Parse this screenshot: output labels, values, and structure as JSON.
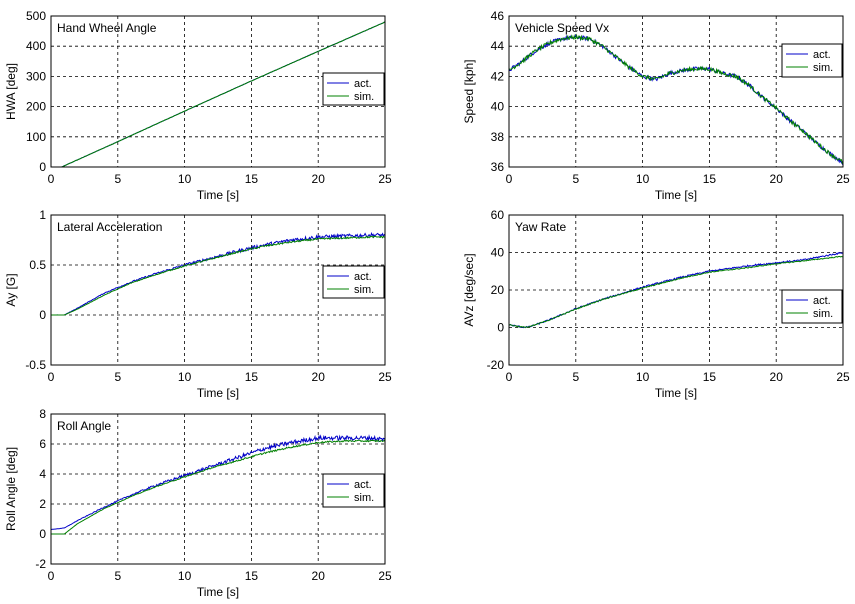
{
  "chart_data": [
    {
      "type": "line",
      "title": "Hand Wheel Angle",
      "xlabel": "Time [s]",
      "ylabel": "HWA [deg]",
      "xlim": [
        0,
        25
      ],
      "ylim": [
        0,
        500
      ],
      "xticks": [
        "0",
        "5",
        "10",
        "15",
        "20",
        "25"
      ],
      "yticks": [
        "0",
        "100",
        "200",
        "300",
        "400",
        "500"
      ],
      "grid": true,
      "legend_position": "center-right",
      "series": [
        {
          "name": "act.",
          "color": "#0000c8",
          "x": [
            0.8,
            5,
            10,
            15,
            20,
            25
          ],
          "y": [
            0,
            84,
            185,
            285,
            383,
            480
          ]
        },
        {
          "name": "sim.",
          "color": "#008000",
          "x": [
            0.8,
            5,
            10,
            15,
            20,
            25
          ],
          "y": [
            0,
            84,
            185,
            285,
            383,
            480
          ]
        }
      ]
    },
    {
      "type": "line",
      "title": "Vehicle Speed Vx",
      "xlabel": "Time [s]",
      "ylabel": "Speed [kph]",
      "xlim": [
        0,
        25
      ],
      "ylim": [
        36,
        46
      ],
      "xticks": [
        "0",
        "5",
        "10",
        "15",
        "20",
        "25"
      ],
      "yticks": [
        "36",
        "38",
        "40",
        "42",
        "44",
        "46"
      ],
      "grid": true,
      "legend_position": "top-right",
      "series": [
        {
          "name": "act.",
          "color": "#0000c8",
          "x": [
            0,
            1,
            2,
            3,
            4,
            5,
            6,
            7,
            8,
            9,
            10,
            11,
            12,
            13,
            14,
            15,
            16,
            17,
            18,
            19,
            20,
            21,
            22,
            23,
            24,
            25
          ],
          "y": [
            42.4,
            43.0,
            43.7,
            44.2,
            44.5,
            44.6,
            44.5,
            44.0,
            43.3,
            42.6,
            42.0,
            41.8,
            42.2,
            42.4,
            42.5,
            42.5,
            42.2,
            42.0,
            41.4,
            40.6,
            39.9,
            39.1,
            38.4,
            37.6,
            36.9,
            36.3
          ]
        },
        {
          "name": "sim.",
          "color": "#008000",
          "x": [
            0,
            1,
            2,
            3,
            4,
            5,
            6,
            7,
            8,
            9,
            10,
            11,
            12,
            13,
            14,
            15,
            16,
            17,
            18,
            19,
            20,
            21,
            22,
            23,
            24,
            25
          ],
          "y": [
            42.4,
            43.0,
            43.7,
            44.2,
            44.5,
            44.6,
            44.5,
            44.0,
            43.3,
            42.6,
            42.0,
            41.8,
            42.2,
            42.4,
            42.5,
            42.5,
            42.2,
            42.0,
            41.4,
            40.6,
            39.9,
            39.1,
            38.4,
            37.6,
            36.9,
            36.3
          ]
        }
      ]
    },
    {
      "type": "line",
      "title": "Lateral Acceleration",
      "xlabel": "Time [s]",
      "ylabel": "Ay [G]",
      "xlim": [
        0,
        25
      ],
      "ylim": [
        -0.5,
        1
      ],
      "xticks": [
        "0",
        "5",
        "10",
        "15",
        "20",
        "25"
      ],
      "yticks": [
        "-0.5",
        "0",
        "0.5",
        "1"
      ],
      "grid": true,
      "legend_position": "center-right",
      "series": [
        {
          "name": "act.",
          "color": "#0000c8",
          "x": [
            0,
            1,
            2,
            4,
            6,
            8,
            10,
            12,
            14,
            16,
            18,
            20,
            22,
            24,
            25
          ],
          "y": [
            0.0,
            0.0,
            0.07,
            0.22,
            0.33,
            0.42,
            0.5,
            0.57,
            0.64,
            0.7,
            0.75,
            0.78,
            0.79,
            0.8,
            0.8
          ]
        },
        {
          "name": "sim.",
          "color": "#008000",
          "x": [
            0,
            1,
            2,
            4,
            6,
            8,
            10,
            12,
            14,
            16,
            18,
            20,
            22,
            24,
            25
          ],
          "y": [
            0.0,
            0.0,
            0.06,
            0.2,
            0.32,
            0.41,
            0.49,
            0.56,
            0.63,
            0.69,
            0.73,
            0.76,
            0.77,
            0.78,
            0.78
          ]
        }
      ]
    },
    {
      "type": "line",
      "title": "Yaw Rate",
      "xlabel": "Time [s]",
      "ylabel": "AVz [deg/sec]",
      "xlim": [
        0,
        25
      ],
      "ylim": [
        -20,
        60
      ],
      "xticks": [
        "0",
        "5",
        "10",
        "15",
        "20",
        "25"
      ],
      "yticks": [
        "-20",
        "0",
        "20",
        "40",
        "60"
      ],
      "grid": true,
      "legend_position": "center-right",
      "series": [
        {
          "name": "act.",
          "color": "#0000c8",
          "x": [
            0,
            0.5,
            1,
            1.5,
            2,
            3,
            5,
            7,
            10,
            13,
            15,
            18,
            20,
            22,
            25
          ],
          "y": [
            1.5,
            0.8,
            0.2,
            0.3,
            1.5,
            4.0,
            10.0,
            15.0,
            21.5,
            27.0,
            30.0,
            33.0,
            34.5,
            36.0,
            40.0
          ]
        },
        {
          "name": "sim.",
          "color": "#008000",
          "x": [
            0,
            0.5,
            1,
            1.5,
            2,
            3,
            5,
            7,
            10,
            13,
            15,
            18,
            20,
            22,
            25
          ],
          "y": [
            1.5,
            0.8,
            0.2,
            0.3,
            1.5,
            4.0,
            9.8,
            15.0,
            21.0,
            26.5,
            29.5,
            32.0,
            34.0,
            35.5,
            38.0
          ]
        }
      ]
    },
    {
      "type": "line",
      "title": "Roll Angle",
      "xlabel": "Time [s]",
      "ylabel": "Roll Angle [deg]",
      "xlim": [
        0,
        25
      ],
      "ylim": [
        -2,
        8
      ],
      "xticks": [
        "0",
        "5",
        "10",
        "15",
        "20",
        "25"
      ],
      "yticks": [
        "-2",
        "0",
        "2",
        "4",
        "6",
        "8"
      ],
      "grid": true,
      "legend_position": "center-right",
      "series": [
        {
          "name": "act.",
          "color": "#0000c8",
          "x": [
            0,
            1,
            2,
            4,
            6,
            8,
            10,
            12,
            14,
            16,
            18,
            20,
            22,
            24,
            25
          ],
          "y": [
            0.3,
            0.4,
            0.9,
            1.8,
            2.6,
            3.3,
            3.9,
            4.5,
            5.1,
            5.7,
            6.1,
            6.4,
            6.4,
            6.4,
            6.3
          ]
        },
        {
          "name": "sim.",
          "color": "#008000",
          "x": [
            0,
            1,
            2,
            4,
            6,
            8,
            10,
            12,
            14,
            16,
            18,
            20,
            22,
            24,
            25
          ],
          "y": [
            0.0,
            0.0,
            0.7,
            1.7,
            2.5,
            3.2,
            3.8,
            4.4,
            4.9,
            5.4,
            5.8,
            6.1,
            6.2,
            6.2,
            6.2
          ]
        }
      ]
    }
  ]
}
